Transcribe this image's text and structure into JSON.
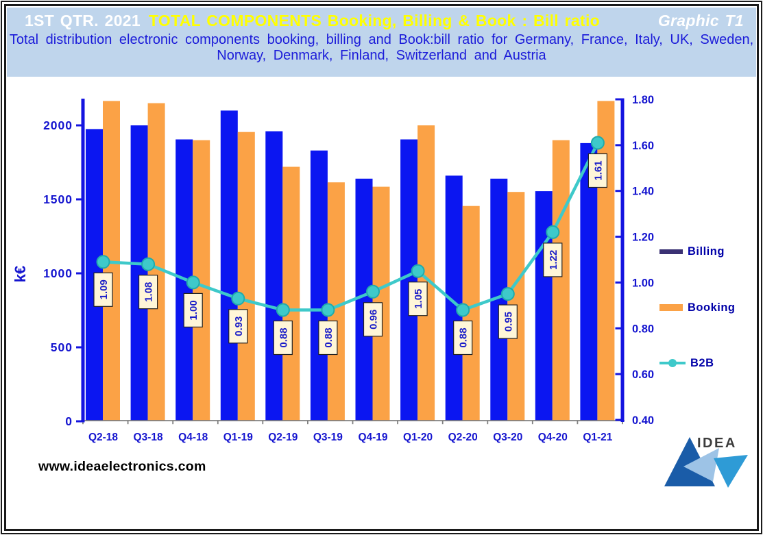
{
  "header": {
    "title_prefix": "1ST QTR. 2021",
    "title_main": "TOTAL COMPONENTS  Booking, Billing  & Book : Bill ratio",
    "title_right": "Graphic T1",
    "subtitle_line1": "Total distribution electronic components booking, billing and Book:bill ratio for Germany, France, Italy, UK, Sweden,",
    "subtitle_line2": "Norway, Denmark, Finland, Switzerland and Austria"
  },
  "legend": {
    "items": [
      {
        "label": "Billing",
        "swatch_color": "#3A3173",
        "type": "bar"
      },
      {
        "label": "Booking",
        "swatch_color": "#FBA246",
        "type": "bar"
      },
      {
        "label": "B2B",
        "swatch_color": "#3EC9CA",
        "type": "line"
      }
    ]
  },
  "footer": {
    "website": "www.ideaelectronics.com",
    "logo_text": "IDEA"
  },
  "chart_data": {
    "type": "bar",
    "subtype": "grouped-bars-with-line-overlay",
    "categories": [
      "Q2-18",
      "Q3-18",
      "Q4-18",
      "Q1-19",
      "Q2-19",
      "Q3-19",
      "Q4-19",
      "Q1-20",
      "Q2-20",
      "Q3-20",
      "Q4-20",
      "Q1-21"
    ],
    "series": [
      {
        "name": "Billing",
        "type": "bar",
        "axis": "left",
        "color": "#0B16F1",
        "values": [
          1975,
          2000,
          1905,
          2100,
          1960,
          1830,
          1640,
          1905,
          1660,
          1640,
          1555,
          1880
        ]
      },
      {
        "name": "Booking",
        "type": "bar",
        "axis": "left",
        "color": "#FBA246",
        "values": [
          2165,
          2150,
          1900,
          1955,
          1720,
          1615,
          1585,
          2000,
          1455,
          1550,
          1900,
          2165
        ]
      },
      {
        "name": "B2B",
        "type": "line",
        "axis": "right",
        "color": "#3EC9CA",
        "marker": "circle",
        "values": [
          1.09,
          1.08,
          1.0,
          0.93,
          0.88,
          0.88,
          0.96,
          1.05,
          0.88,
          0.95,
          1.22,
          1.61
        ]
      }
    ],
    "left_axis": {
      "label": "k€",
      "ticks": [
        0,
        500,
        1000,
        1500,
        2000
      ],
      "range": [
        0,
        2200
      ],
      "color": "#1414E0"
    },
    "right_axis": {
      "label": "",
      "ticks": [
        "0.40",
        "0.60",
        "0.80",
        "1.00",
        "1.20",
        "1.40",
        "1.60",
        "1.80"
      ],
      "range": [
        0.4,
        1.8
      ],
      "color": "#1414E0"
    },
    "point_labels_series": "B2B",
    "point_label_box": {
      "fill": "#FFF6D8",
      "border": "#222222",
      "text_color": "#1A1DC8"
    },
    "grid": false,
    "legend_position": "right"
  }
}
